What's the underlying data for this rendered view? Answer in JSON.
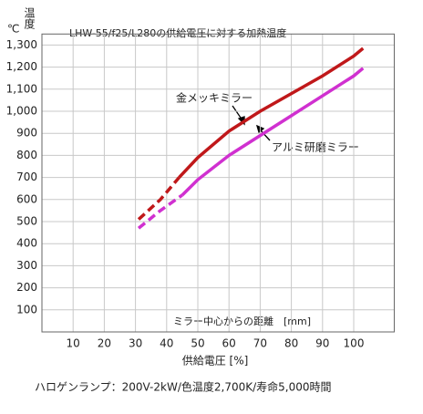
{
  "chart_data": {
    "type": "line",
    "title": "LHW-55/f25/L280の供給電圧に対する加熱温度",
    "y_unit": "℃",
    "y_label": "温度",
    "x_label": "供給電圧 [%]",
    "secondary_label": "ミラー中心からの距離　[mm]",
    "footnote": "ハロゲンランプ：200V-2kW/色温度2,700K/寿命5,000時間",
    "xlim": [
      0,
      113
    ],
    "ylim": [
      0,
      1350
    ],
    "xticks": [
      10,
      20,
      30,
      40,
      50,
      60,
      70,
      80,
      90,
      100
    ],
    "yticks": [
      100,
      200,
      300,
      400,
      500,
      600,
      700,
      800,
      900,
      {
        "value": 1000,
        "label": "1,000"
      },
      {
        "value": 1100,
        "label": "1,100"
      },
      {
        "value": 1200,
        "label": "1,200"
      },
      {
        "value": 1300,
        "label": "1,300"
      }
    ],
    "grid": true,
    "series": [
      {
        "name": "金メッキミラー",
        "color": "#c0181a",
        "segments": [
          {
            "style": "dashed",
            "x": [
              31,
              38,
              44
            ],
            "values": [
              510,
              600,
              700
            ]
          },
          {
            "style": "solid",
            "x": [
              44,
              50,
              60,
              70,
              80,
              90,
              100,
              103
            ],
            "values": [
              700,
              790,
              910,
              1000,
              1080,
              1160,
              1250,
              1285
            ]
          }
        ]
      },
      {
        "name": "アルミ研磨ミラー",
        "color": "#d030d0",
        "segments": [
          {
            "style": "dashed",
            "x": [
              31,
              38,
              45
            ],
            "values": [
              470,
              550,
              620
            ]
          },
          {
            "style": "solid",
            "x": [
              45,
              50,
              60,
              70,
              80,
              90,
              100,
              103
            ],
            "values": [
              620,
              690,
              800,
              890,
              980,
              1070,
              1160,
              1195
            ]
          }
        ]
      }
    ]
  }
}
